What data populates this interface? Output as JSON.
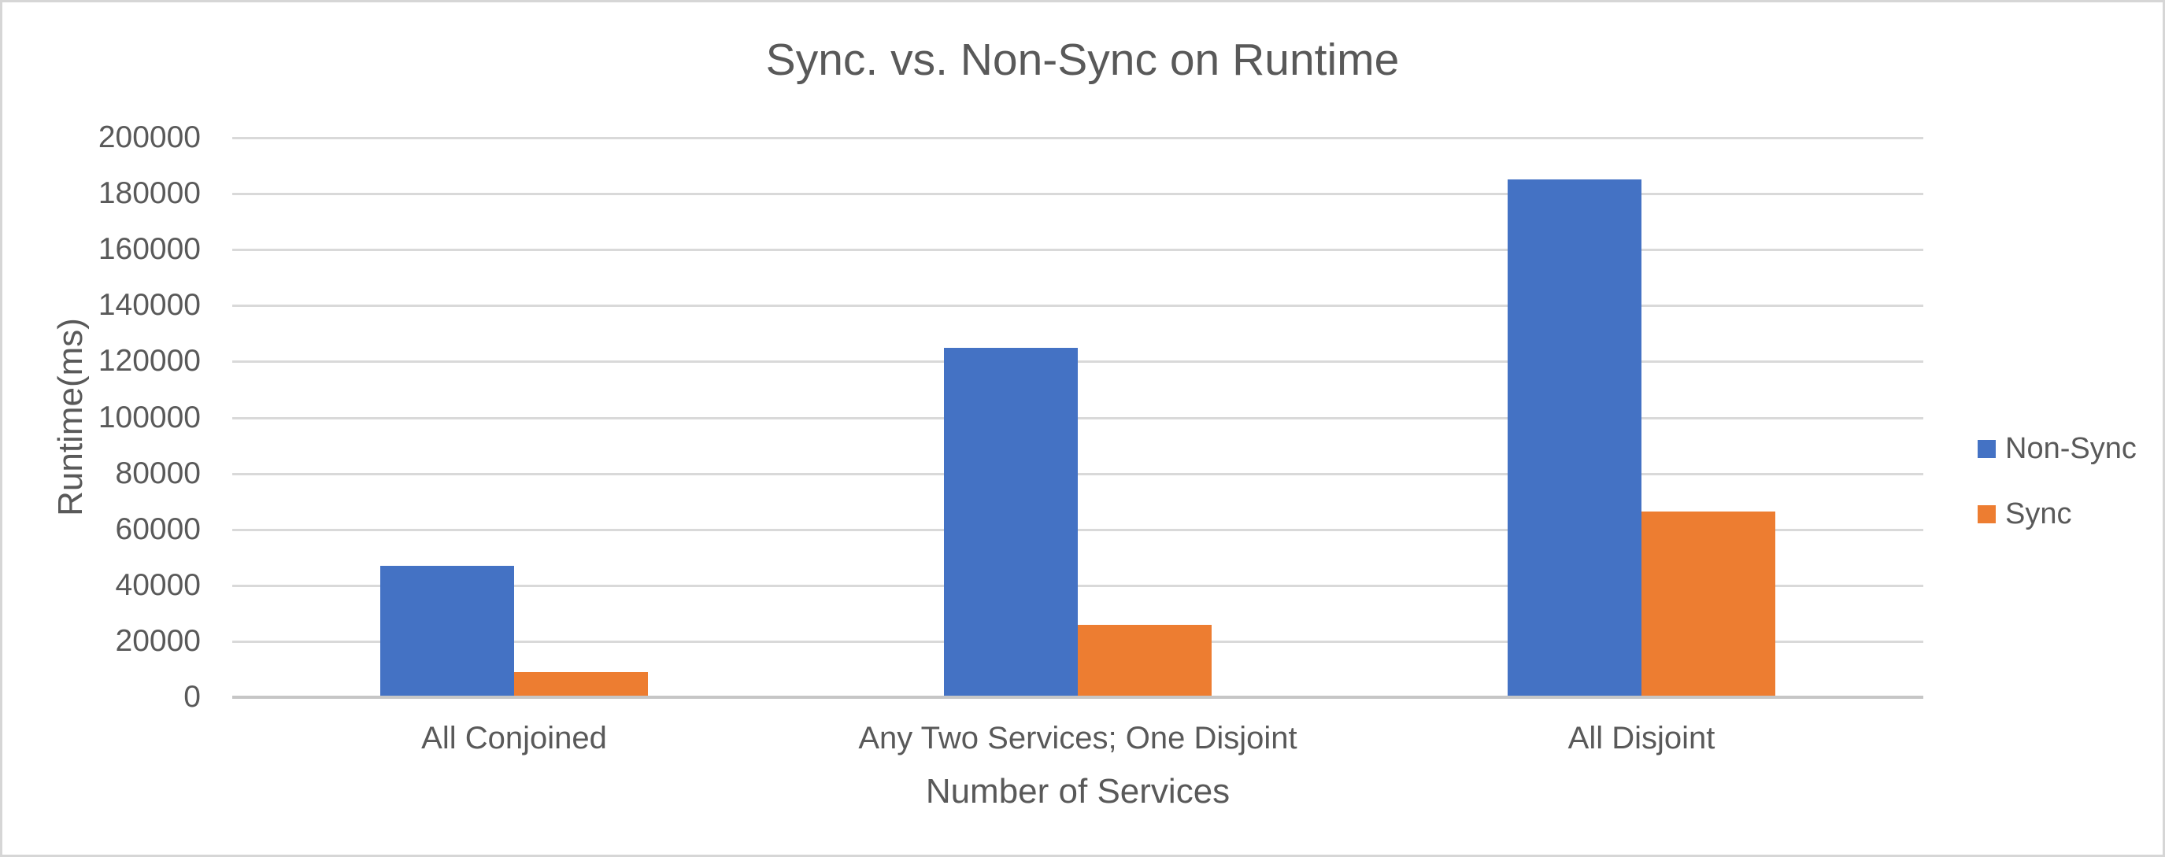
{
  "page": {
    "background_color": "#FFFFFF",
    "border_color": "#D6D6D6"
  },
  "chart_data": {
    "type": "bar",
    "title": "Sync. vs. Non-Sync on Runtime",
    "xlabel": "Number of Services",
    "ylabel": "Runtime(ms)",
    "categories": [
      "All Conjoined",
      "Any Two Services; One Disjoint",
      "All Disjoint"
    ],
    "series": [
      {
        "name": "Non-Sync",
        "color": "#4472C4",
        "values": [
          47000,
          125000,
          185000
        ]
      },
      {
        "name": "Sync",
        "color": "#ED7D31",
        "values": [
          9000,
          26000,
          66500
        ]
      }
    ],
    "ylim": [
      0,
      200000
    ],
    "ytick_step": 20000,
    "ytick_labels": [
      "0",
      "20000",
      "40000",
      "60000",
      "80000",
      "100000",
      "120000",
      "140000",
      "160000",
      "180000",
      "200000"
    ],
    "grid": true,
    "legend_position": "right",
    "text_color": "#595959",
    "gridline_color": "#D9D9D9",
    "axis_line_color": "#C6C6C6"
  }
}
